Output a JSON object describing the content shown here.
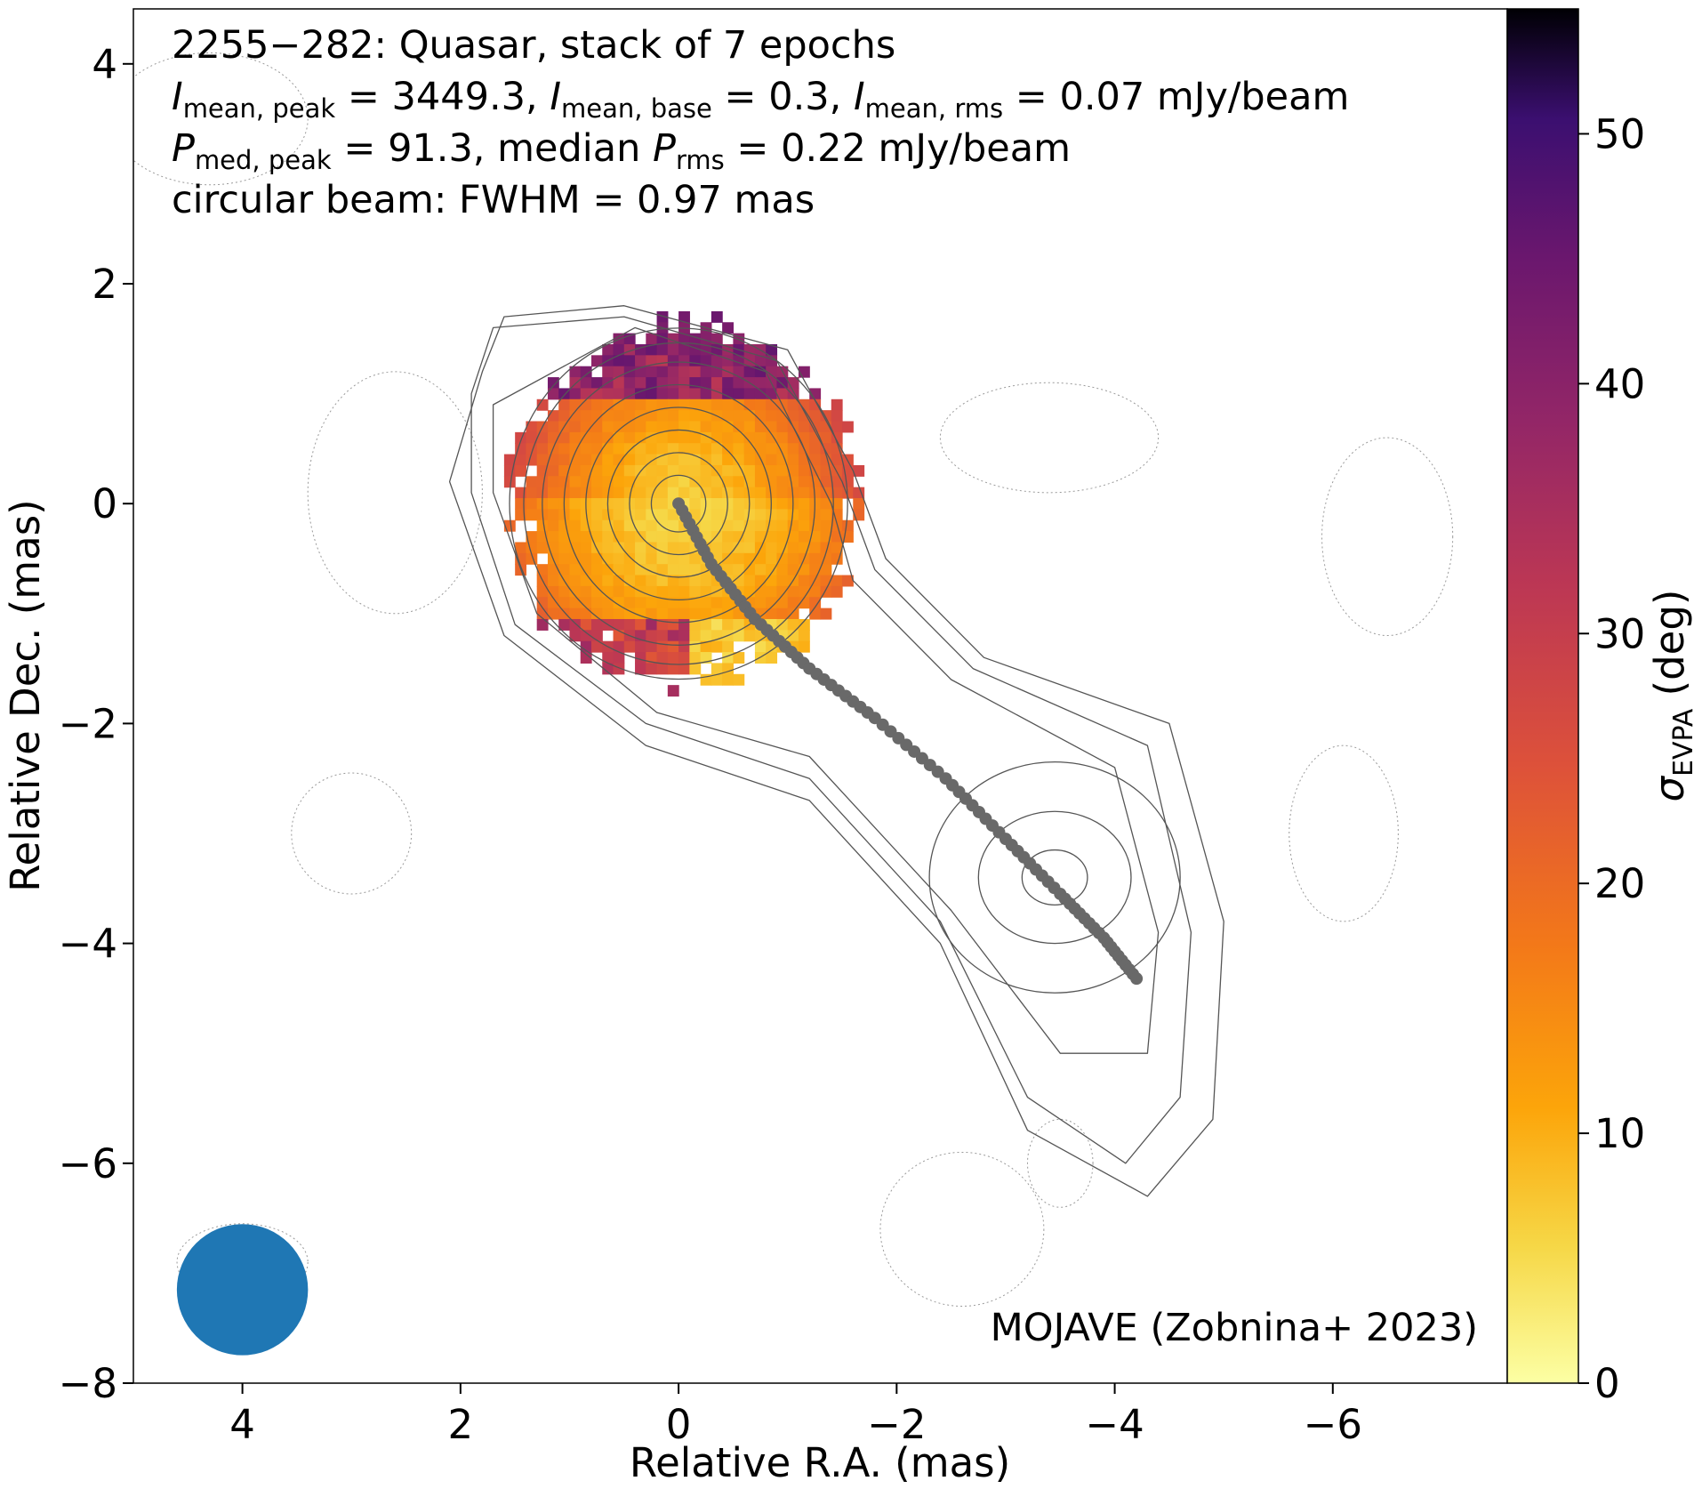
{
  "annotation": {
    "line1": "2255−282: Quasar, stack of 7 epochs",
    "line2": {
      "i_symbol": "I",
      "peak_sub": "mean, peak",
      "peak_text": " = 3449.3, ",
      "base_sub": "mean, base",
      "base_text": " = 0.3, ",
      "rms_sub": "mean, rms",
      "rms_text": " = 0.07 mJy/beam"
    },
    "line3": {
      "p_symbol": "P",
      "peak_sub": "med, peak",
      "peak_text": " = 91.3, median ",
      "rms_sub": "rms",
      "rms_text": " = 0.22 mJy/beam"
    },
    "line4": "circular beam: FWHM = 0.97 mas"
  },
  "credit": "MOJAVE (Zobnina+ 2023)",
  "colors": {
    "beam": "#1f77b4",
    "ridge": "#696969",
    "contour": "#555555",
    "noise_contour": "#9a9a9a"
  },
  "chart_data": {
    "type": "heatmap",
    "xlabel": "Relative R.A. (mas)",
    "ylabel": "Relative Dec. (mas)",
    "xlim": [
      5,
      -7.6
    ],
    "ylim": [
      -8,
      4.5
    ],
    "x_ticks": [
      4,
      2,
      0,
      -2,
      -4,
      -6
    ],
    "y_ticks": [
      4,
      2,
      0,
      -2,
      -4,
      -6,
      -8
    ],
    "x_tick_labels": [
      "4",
      "2",
      "0",
      "−2",
      "−4",
      "−6"
    ],
    "y_tick_labels": [
      "4",
      "2",
      "0",
      "−2",
      "−4",
      "−6",
      "−8"
    ],
    "colorbar": {
      "label_symbol": "σ",
      "label_sub": "EVPA",
      "label_unit": " (deg)",
      "range": [
        0,
        55
      ],
      "ticks": [
        0,
        10,
        20,
        30,
        40,
        50
      ],
      "tick_labels": [
        "0",
        "10",
        "20",
        "30",
        "40",
        "50"
      ],
      "colormap": "inferno_r"
    },
    "beam": {
      "center": [
        4,
        -7.15
      ],
      "fwhm_mas": 0.97
    },
    "ridge_line": {
      "points": [
        [
          0,
          0
        ],
        [
          -0.3,
          -0.55
        ],
        [
          -0.7,
          -1.05
        ],
        [
          -1.2,
          -1.5
        ],
        [
          -1.8,
          -1.95
        ],
        [
          -2.45,
          -2.5
        ],
        [
          -3.0,
          -3.05
        ],
        [
          -3.5,
          -3.55
        ],
        [
          -3.9,
          -3.95
        ],
        [
          -4.2,
          -4.32
        ]
      ]
    },
    "evpa_sigma_map": {
      "center": [
        0.0,
        0.05
      ],
      "radius_mas": 1.6,
      "core_value": 6,
      "north_rim_value": 40,
      "south_rim_value": 4
    },
    "contours": {
      "core_radii_mas": [
        0.25,
        0.45,
        0.65,
        0.85,
        1.05,
        1.25,
        1.42,
        1.55
      ],
      "jet_knot_center": [
        -3.45,
        -3.4
      ]
    }
  }
}
